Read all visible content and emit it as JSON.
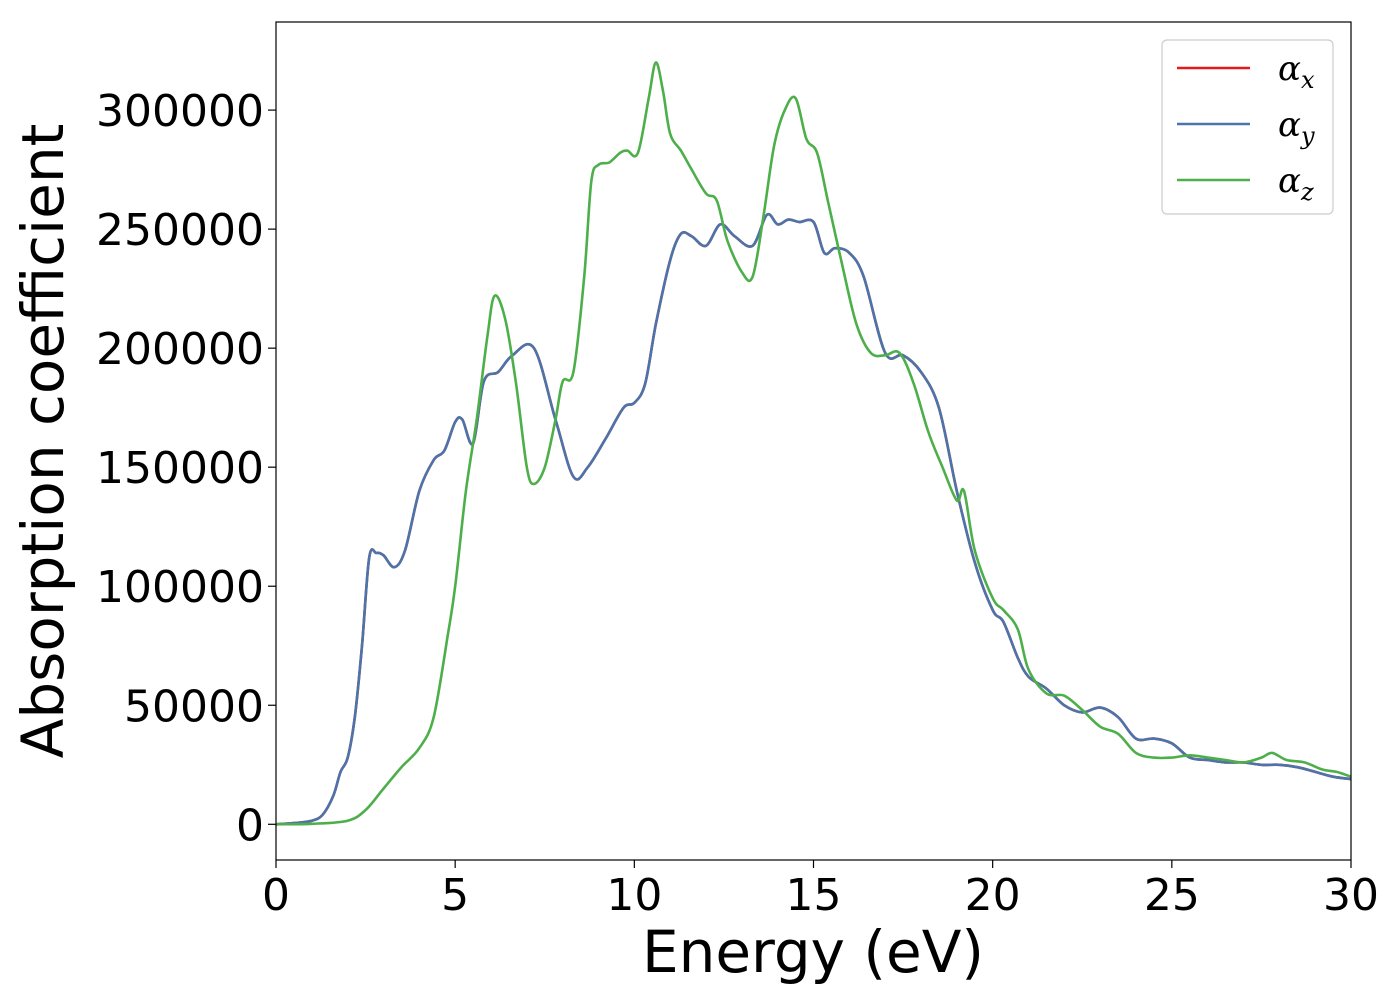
{
  "chart_data": {
    "type": "line",
    "title": "",
    "xlabel": "Energy (eV)",
    "ylabel": "Absorption coefficient",
    "xlim": [
      0,
      30
    ],
    "ylim": [
      -15000,
      337000
    ],
    "xticks": [
      0,
      5,
      10,
      15,
      20,
      25,
      30
    ],
    "yticks": [
      0,
      50000,
      100000,
      150000,
      200000,
      250000,
      300000
    ],
    "grid": false,
    "legend_position": "top-right",
    "series": [
      {
        "name": "α",
        "subscript": "x",
        "color": "#e41a1c",
        "x": [
          0,
          0.5,
          1.0,
          1.3,
          1.6,
          1.8,
          2.0,
          2.2,
          2.4,
          2.6,
          2.8,
          3.0,
          3.3,
          3.6,
          4.0,
          4.4,
          4.7,
          5.0,
          5.2,
          5.5,
          5.8,
          6.2,
          6.6,
          7.2,
          7.8,
          8.3,
          8.7,
          9.2,
          9.7,
          10.0,
          10.3,
          10.6,
          11.0,
          11.3,
          11.6,
          12.0,
          12.4,
          12.8,
          13.3,
          13.7,
          14.0,
          14.3,
          14.6,
          15.0,
          15.3,
          15.6,
          16.0,
          16.4,
          17.0,
          17.5,
          18.0,
          18.5,
          19.0,
          19.5,
          20.0,
          20.3,
          20.7,
          21.0,
          21.5,
          22.0,
          22.5,
          23.0,
          23.5,
          24.0,
          24.5,
          25.0,
          25.5,
          26.0,
          26.5,
          27.0,
          27.5,
          28.0,
          28.5,
          29.0,
          29.5,
          30.0
        ],
        "values": [
          0,
          500,
          1500,
          4000,
          12000,
          22000,
          28000,
          45000,
          75000,
          112000,
          114000,
          113000,
          108000,
          115000,
          140000,
          153000,
          157000,
          169000,
          170000,
          160000,
          186000,
          190000,
          197000,
          200000,
          170000,
          146000,
          150000,
          162000,
          175000,
          177000,
          185000,
          210000,
          237000,
          248000,
          247000,
          243000,
          252000,
          247000,
          243000,
          256000,
          252000,
          254000,
          253000,
          253000,
          240000,
          242000,
          240000,
          230000,
          198000,
          197000,
          190000,
          175000,
          140000,
          110000,
          90000,
          85000,
          70000,
          62000,
          57000,
          50000,
          47000,
          49000,
          45000,
          36000,
          36000,
          34000,
          28000,
          27000,
          26000,
          26000,
          25000,
          25000,
          24000,
          22000,
          20000,
          19000
        ]
      },
      {
        "name": "α",
        "subscript": "y",
        "color": "#4a74aa",
        "x": [
          0,
          0.5,
          1.0,
          1.3,
          1.6,
          1.8,
          2.0,
          2.2,
          2.4,
          2.6,
          2.8,
          3.0,
          3.3,
          3.6,
          4.0,
          4.4,
          4.7,
          5.0,
          5.2,
          5.5,
          5.8,
          6.2,
          6.6,
          7.2,
          7.8,
          8.3,
          8.7,
          9.2,
          9.7,
          10.0,
          10.3,
          10.6,
          11.0,
          11.3,
          11.6,
          12.0,
          12.4,
          12.8,
          13.3,
          13.7,
          14.0,
          14.3,
          14.6,
          15.0,
          15.3,
          15.6,
          16.0,
          16.4,
          17.0,
          17.5,
          18.0,
          18.5,
          19.0,
          19.5,
          20.0,
          20.3,
          20.7,
          21.0,
          21.5,
          22.0,
          22.5,
          23.0,
          23.5,
          24.0,
          24.5,
          25.0,
          25.5,
          26.0,
          26.5,
          27.0,
          27.5,
          28.0,
          28.5,
          29.0,
          29.5,
          30.0
        ],
        "values": [
          0,
          500,
          1500,
          4000,
          12000,
          22000,
          28000,
          45000,
          75000,
          112000,
          114000,
          113000,
          108000,
          115000,
          140000,
          153000,
          157000,
          169000,
          170000,
          160000,
          186000,
          190000,
          197000,
          200000,
          170000,
          146000,
          150000,
          162000,
          175000,
          177000,
          185000,
          210000,
          237000,
          248000,
          247000,
          243000,
          252000,
          247000,
          243000,
          256000,
          252000,
          254000,
          253000,
          253000,
          240000,
          242000,
          240000,
          230000,
          198000,
          197000,
          190000,
          175000,
          140000,
          110000,
          90000,
          85000,
          70000,
          62000,
          57000,
          50000,
          47000,
          49000,
          45000,
          36000,
          36000,
          34000,
          28000,
          27000,
          26000,
          26000,
          25000,
          25000,
          24000,
          22000,
          20000,
          19000
        ]
      },
      {
        "name": "α",
        "subscript": "z",
        "color": "#4daf4a",
        "x": [
          0,
          1.0,
          2.0,
          2.5,
          3.0,
          3.5,
          4.0,
          4.4,
          4.8,
          5.0,
          5.3,
          5.6,
          5.9,
          6.1,
          6.4,
          6.7,
          7.0,
          7.2,
          7.5,
          7.8,
          8.0,
          8.3,
          8.6,
          8.8,
          9.0,
          9.3,
          9.6,
          9.8,
          10.1,
          10.4,
          10.6,
          10.8,
          11.0,
          11.3,
          11.6,
          12.0,
          12.3,
          12.6,
          13.0,
          13.3,
          13.6,
          13.9,
          14.2,
          14.5,
          14.8,
          15.1,
          15.4,
          15.8,
          16.2,
          16.6,
          17.0,
          17.4,
          17.8,
          18.2,
          18.6,
          19.0,
          19.2,
          19.5,
          20.0,
          20.3,
          20.7,
          21.0,
          21.5,
          22.0,
          22.5,
          23.0,
          23.5,
          24.0,
          24.5,
          25.0,
          25.5,
          26.0,
          26.5,
          27.0,
          27.5,
          27.8,
          28.2,
          28.7,
          29.2,
          29.6,
          30.0
        ],
        "values": [
          0,
          200,
          1500,
          6000,
          15000,
          24000,
          32000,
          45000,
          80000,
          100000,
          140000,
          170000,
          205000,
          222000,
          212000,
          185000,
          150000,
          143000,
          150000,
          170000,
          186000,
          190000,
          230000,
          270000,
          277000,
          278000,
          282000,
          283000,
          282000,
          305000,
          320000,
          308000,
          290000,
          283000,
          275000,
          265000,
          262000,
          245000,
          232000,
          230000,
          255000,
          285000,
          300000,
          305000,
          288000,
          282000,
          262000,
          235000,
          210000,
          198000,
          197000,
          198000,
          185000,
          165000,
          150000,
          136000,
          140000,
          115000,
          95000,
          90000,
          82000,
          65000,
          55000,
          54000,
          48000,
          41000,
          38000,
          30000,
          28000,
          28000,
          29000,
          28000,
          27000,
          26000,
          28000,
          30000,
          27000,
          26000,
          23000,
          22000,
          20000
        ]
      }
    ]
  }
}
